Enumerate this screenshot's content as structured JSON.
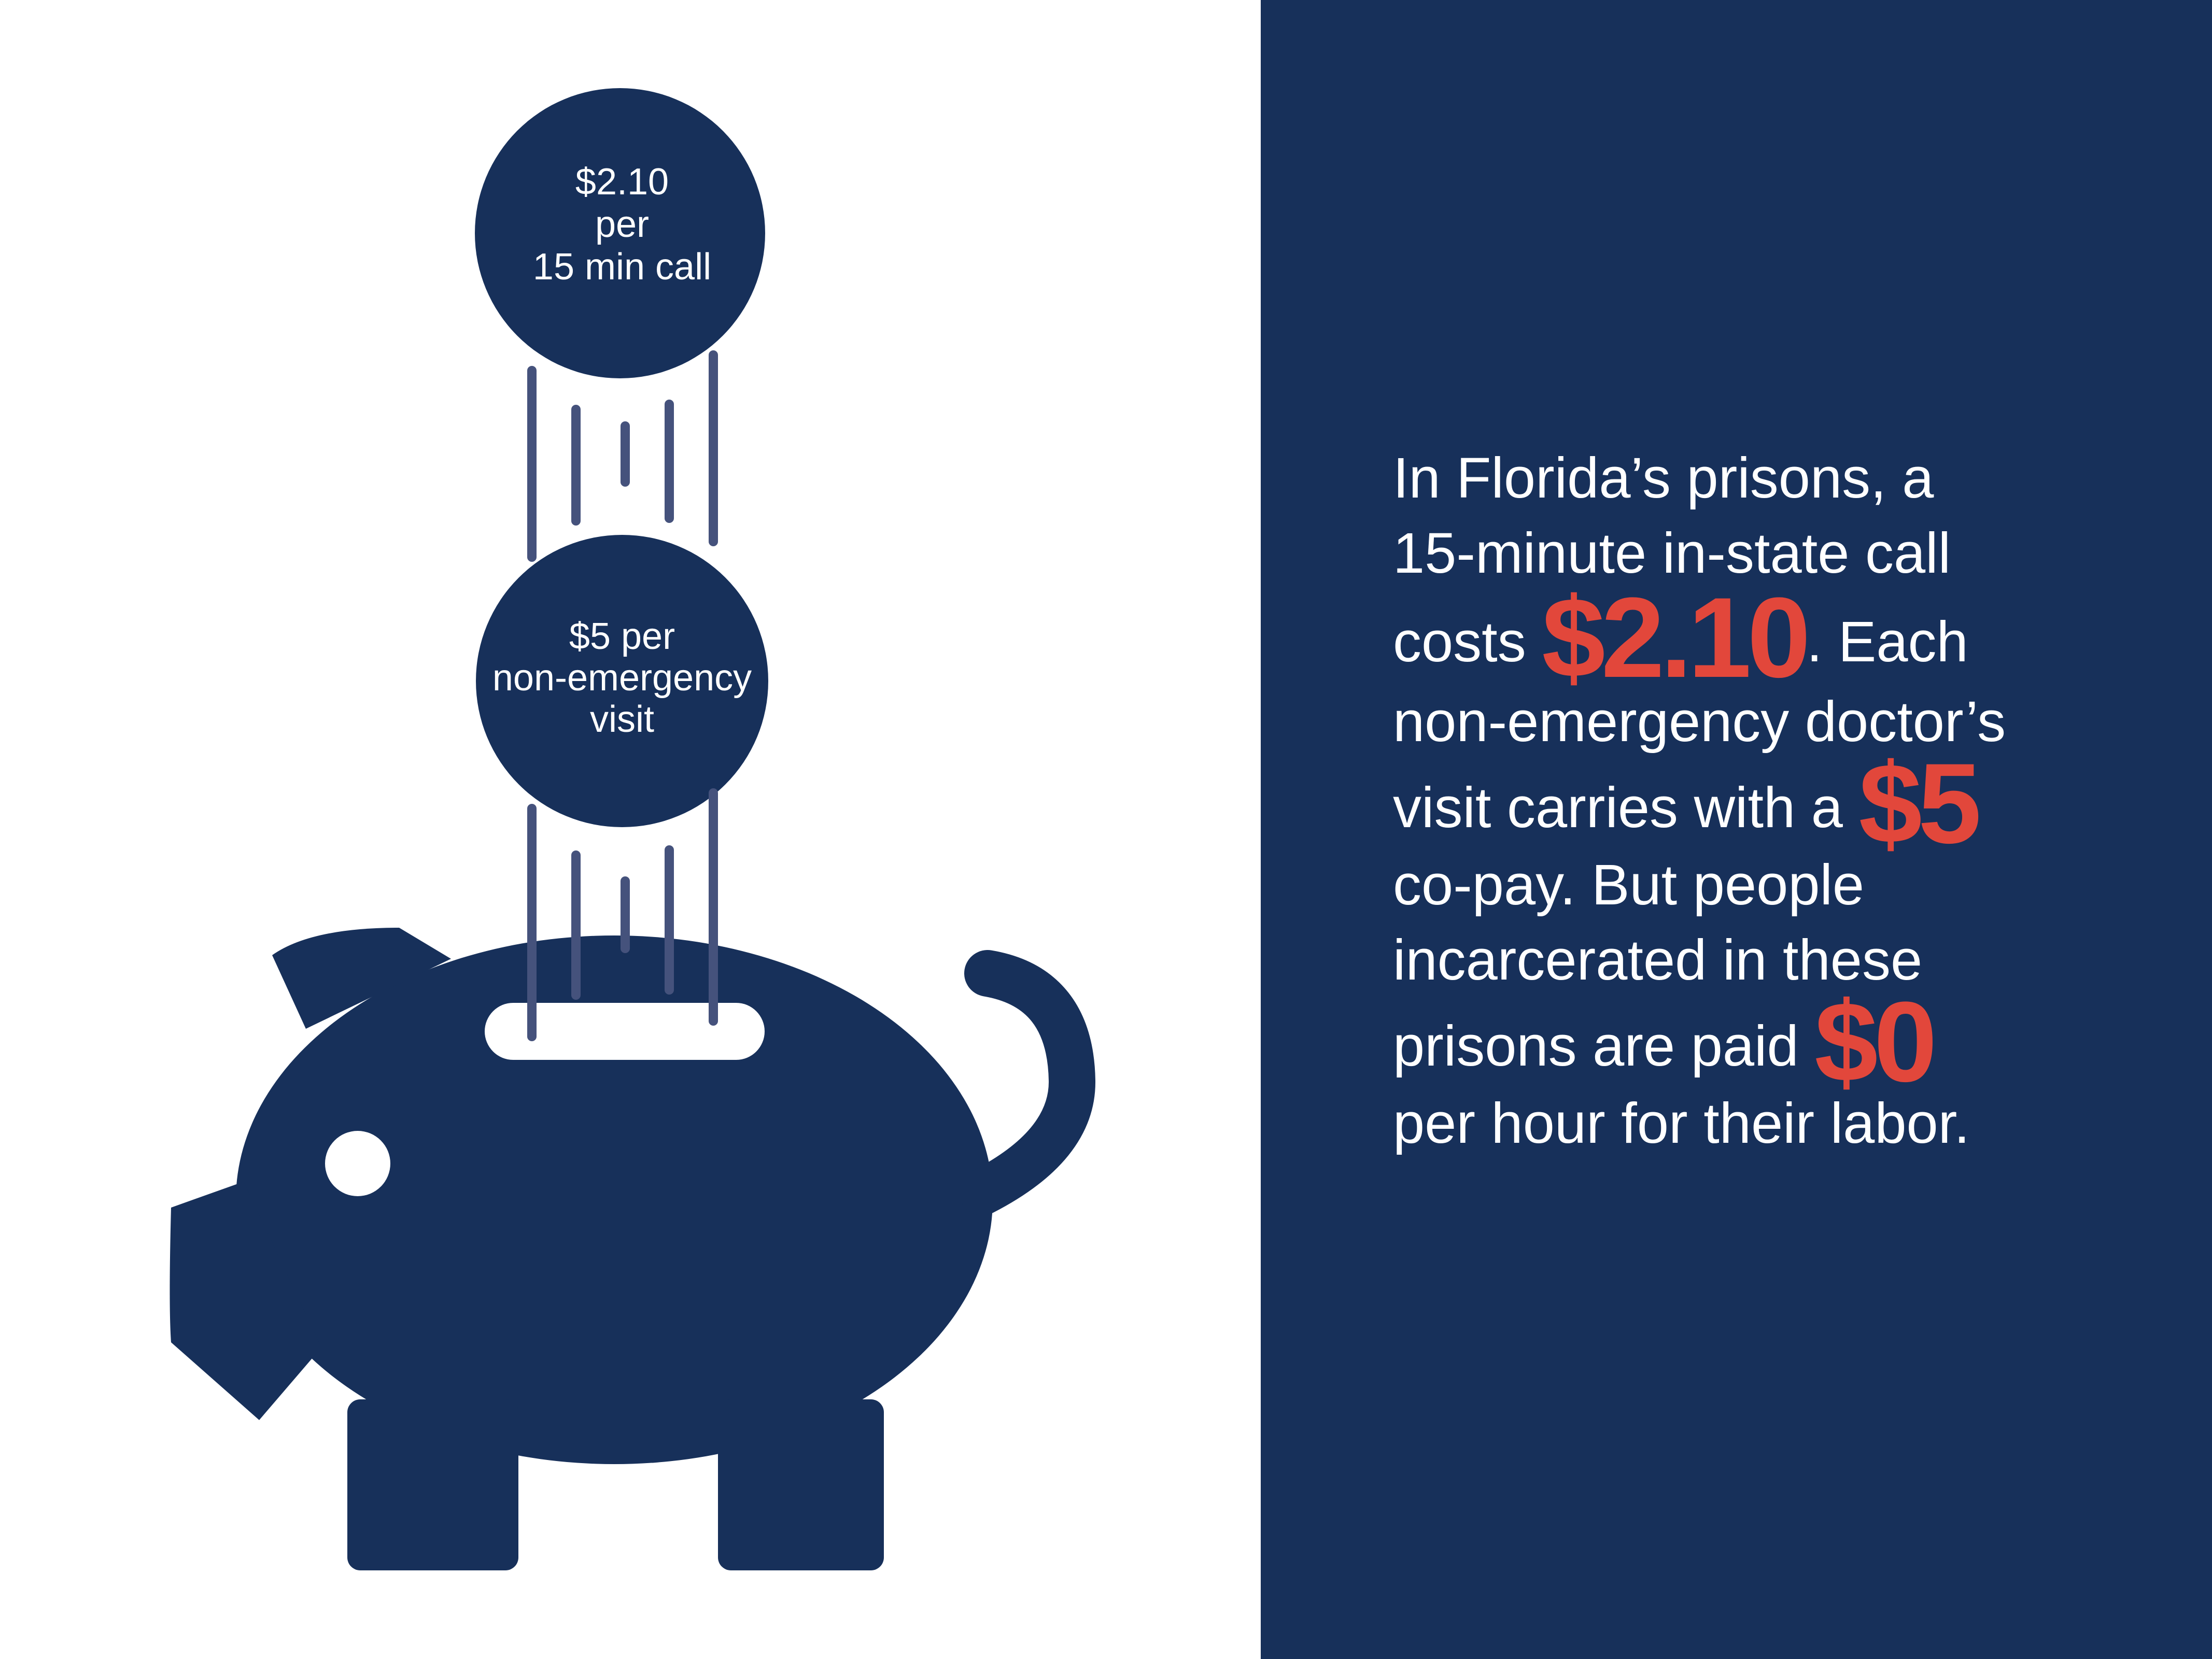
{
  "coins": {
    "call": [
      "$2.10",
      "per",
      "15 min call"
    ],
    "visit": [
      "$5 per",
      "non-emergency",
      "visit"
    ]
  },
  "statement": {
    "line1": "In Florida’s prisons, a",
    "line2": "15-minute in-state call",
    "line3_pre": "costs ",
    "line3_amount": "$2.10",
    "line3_post": ". Each",
    "line4": "non-emergency doctor’s",
    "line5_pre": "visit carries with a ",
    "line5_amount": "$5",
    "line6": "co-pay. But people",
    "line7": "incarcerated in these",
    "line8_pre": "prisons are paid ",
    "line8_amount": "$0",
    "line9": "per hour for their labor."
  },
  "colors": {
    "navy": "#17305a",
    "accent_red": "#e2473b",
    "white": "#ffffff"
  },
  "icons": [
    "piggy-bank-icon",
    "coin-icon"
  ]
}
